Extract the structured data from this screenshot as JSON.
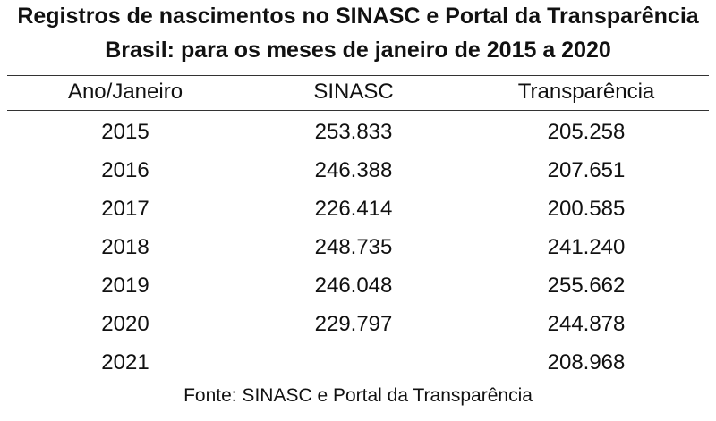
{
  "header": {
    "title_lines": [
      "Registros de nascimentos no SINASC e Portal da Transparência",
      "Brasil: para os meses de janeiro de 2015 a 2020"
    ]
  },
  "table": {
    "columns": [
      "Ano/Janeiro",
      "SINASC",
      "Transparência"
    ],
    "rows": [
      [
        "2015",
        "253.833",
        "205.258"
      ],
      [
        "2016",
        "246.388",
        "207.651"
      ],
      [
        "2017",
        "226.414",
        "200.585"
      ],
      [
        "2018",
        "248.735",
        "241.240"
      ],
      [
        "2019",
        "246.048",
        "255.662"
      ],
      [
        "2020",
        "229.797",
        "244.878"
      ],
      [
        "2021",
        null,
        "208.968"
      ]
    ]
  },
  "footer": {
    "source": "Fonte: SINASC e Portal da Transparência"
  }
}
